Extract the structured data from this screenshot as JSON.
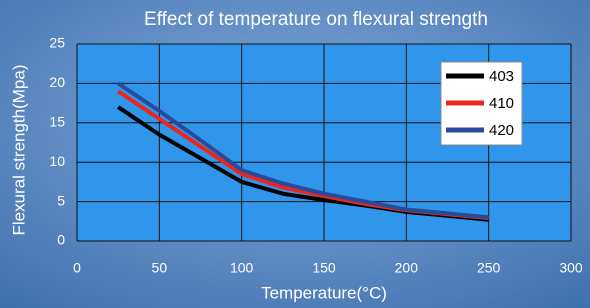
{
  "chart_data": {
    "type": "line",
    "title": "Effect of temperature on flexural strength",
    "x_label": "Temperature(°C)",
    "y_label": "Flexural strength(Mpa)",
    "x": [
      25,
      50,
      75,
      100,
      125,
      150,
      175,
      200,
      225,
      250
    ],
    "series": [
      {
        "name": "403",
        "color": "#000000",
        "values": [
          17,
          13.5,
          10.5,
          7.5,
          6,
          5.2,
          4.5,
          3.7,
          3.2,
          2.7
        ]
      },
      {
        "name": "410",
        "color": "#e8281e",
        "values": [
          19,
          15.5,
          12,
          8.5,
          6.8,
          5.7,
          4.7,
          3.9,
          3.4,
          2.9
        ]
      },
      {
        "name": "420",
        "color": "#2a4a9c",
        "values": [
          20,
          16.5,
          12.8,
          9,
          7.3,
          6,
          5,
          4,
          3.5,
          3
        ]
      }
    ],
    "xlim": [
      0,
      300
    ],
    "xticks": [
      0,
      50,
      100,
      150,
      200,
      250,
      300
    ],
    "ylim": [
      0,
      25
    ],
    "yticks": [
      0,
      5,
      10,
      15,
      20,
      25
    ],
    "grid": true,
    "legend": "upper-right"
  }
}
